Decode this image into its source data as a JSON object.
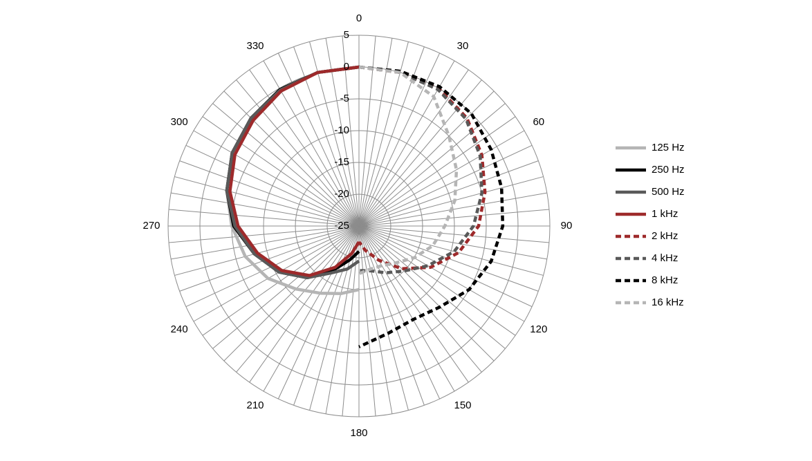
{
  "chart_data": {
    "type": "polar",
    "theta": [
      0,
      15,
      30,
      45,
      60,
      75,
      90,
      105,
      120,
      135,
      150,
      165,
      180,
      195,
      210,
      225,
      240,
      255,
      270,
      285,
      300,
      315,
      330,
      345,
      360
    ],
    "xticks": [
      0,
      30,
      60,
      90,
      120,
      150,
      180,
      210,
      240,
      270,
      300,
      330
    ],
    "ylim": [
      -25,
      5
    ],
    "yticks": [
      -25,
      -20,
      -15,
      -10,
      -5,
      0,
      5
    ],
    "angular_grid_step": 5,
    "grid": true,
    "legend": "right",
    "series": [
      {
        "name": "125 Hz",
        "color": "#b5b5b5",
        "line_style": "solid",
        "values": [
          null,
          null,
          null,
          null,
          null,
          null,
          null,
          null,
          null,
          null,
          null,
          null,
          -15,
          -14,
          -12.8,
          -11,
          -8.5,
          -6.5,
          -5,
          -3.5,
          -2,
          -1,
          -0.3,
          0,
          0
        ]
      },
      {
        "name": "250 Hz",
        "color": "#000000",
        "line_style": "solid",
        "values": [
          null,
          null,
          null,
          null,
          null,
          null,
          null,
          null,
          null,
          null,
          null,
          null,
          -21,
          -19.5,
          -17,
          -13.5,
          -10.5,
          -8,
          -5.3,
          -3.5,
          -2,
          -1,
          -0.2,
          0,
          0
        ]
      },
      {
        "name": "500 Hz",
        "color": "#595959",
        "line_style": "solid",
        "values": [
          null,
          null,
          null,
          null,
          null,
          null,
          null,
          null,
          null,
          null,
          null,
          null,
          -19.5,
          -18,
          -16.5,
          -13.5,
          -10.5,
          -8,
          -5.5,
          -3.5,
          -2,
          -1,
          -0.3,
          0,
          0
        ]
      },
      {
        "name": "1 kHz",
        "color": "#9e2a2b",
        "line_style": "solid",
        "values": [
          null,
          null,
          null,
          null,
          null,
          null,
          null,
          null,
          null,
          null,
          null,
          null,
          -22.5,
          -20.5,
          -17.5,
          -14,
          -11,
          -8.5,
          -6,
          -4,
          -2.5,
          -1.5,
          -0.5,
          0,
          0
        ]
      },
      {
        "name": "2 kHz",
        "color": "#9e2a2b",
        "line_style": "dashed",
        "values": [
          0,
          0,
          0,
          -1,
          -2.7,
          -4.5,
          -6.2,
          -8.8,
          -12,
          -15.5,
          -18.8,
          -21,
          -22.5,
          null,
          null,
          null,
          null,
          null,
          null,
          null,
          null,
          null,
          null,
          null,
          null
        ]
      },
      {
        "name": "4 kHz",
        "color": "#595959",
        "line_style": "dashed",
        "values": [
          0,
          0,
          -0.2,
          -1.2,
          -3,
          -5,
          -7,
          -9.5,
          -12.5,
          -15,
          -16.5,
          -17.7,
          -18,
          null,
          null,
          null,
          null,
          null,
          null,
          null,
          null,
          null,
          null,
          null,
          null
        ]
      },
      {
        "name": "8 kHz",
        "color": "#000000",
        "line_style": "dashed",
        "values": [
          0,
          0.2,
          0.3,
          0,
          -1,
          -1.8,
          -2.4,
          -3.5,
          -5,
          -7,
          -8,
          -7.5,
          -6,
          null,
          null,
          null,
          null,
          null,
          null,
          null,
          null,
          null,
          null,
          null,
          null
        ]
      },
      {
        "name": "16 kHz",
        "color": "#b5b5b5",
        "line_style": "dashed",
        "values": [
          0,
          0,
          -1.5,
          -5,
          -7.3,
          -9.4,
          -11.5,
          -13,
          -15,
          -16.8,
          -17.8,
          -18,
          -17.5,
          null,
          null,
          null,
          null,
          null,
          null,
          null,
          null,
          null,
          null,
          null,
          null
        ]
      }
    ]
  }
}
